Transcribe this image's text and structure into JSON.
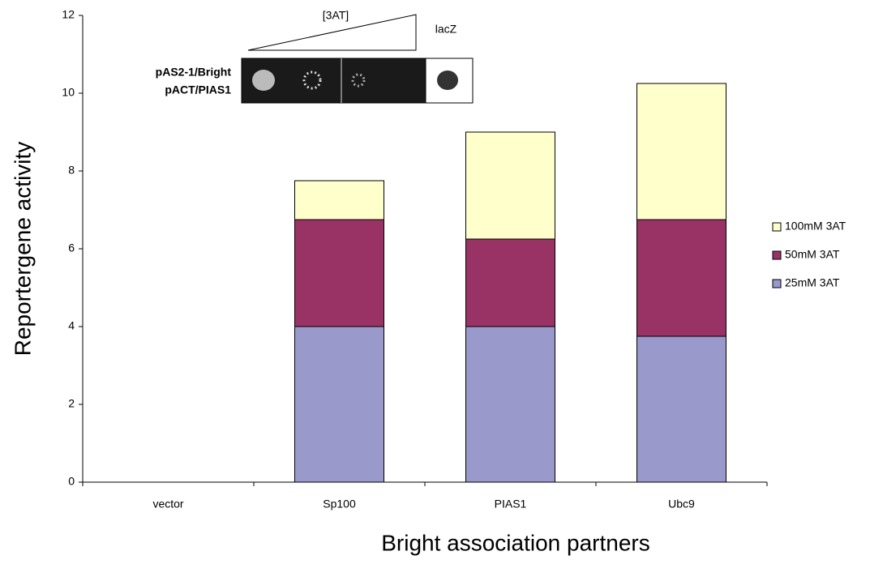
{
  "chart_data": {
    "type": "stacked_bar",
    "x_label": "Bright association partners",
    "y_label": "Reportergene activity",
    "categories": [
      "vector",
      "Sp100",
      "PIAS1",
      "Ubc9"
    ],
    "series": [
      {
        "name": "25mM 3AT",
        "color": "#9999cc",
        "values": [
          0,
          4,
          4,
          3.75
        ]
      },
      {
        "name": "50mM 3AT",
        "color": "#993366",
        "values": [
          0,
          2.75,
          2.25,
          3
        ]
      },
      {
        "name": "100mM 3AT",
        "color": "#ffffcc",
        "values": [
          0,
          1,
          2.75,
          3.5
        ]
      }
    ],
    "ylim": [
      0,
      12
    ],
    "yticks": [
      0,
      2,
      4,
      6,
      8,
      10,
      12
    ],
    "grid": false,
    "legend": "right",
    "annotations": {
      "gradient": "[3AT]",
      "control": "lacZ",
      "bait": "pAS2-1/Bright",
      "prey": "pACT/PIAS1"
    }
  }
}
